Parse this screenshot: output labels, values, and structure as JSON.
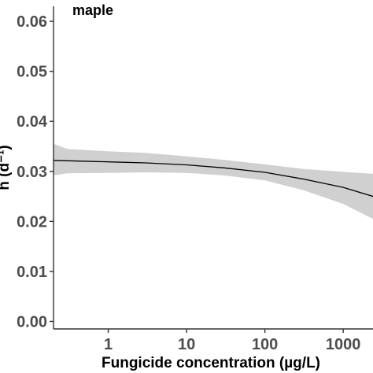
{
  "chart_data": {
    "type": "line",
    "panel_label": "maple",
    "xlabel": "Fungicide concentration (µg/L)",
    "ylabel_fragment": "h (d⁻¹)",
    "x_scale": "log10",
    "xlim": [
      0.2,
      2400
    ],
    "ylim": [
      -0.0015,
      0.063
    ],
    "x_ticks": [
      {
        "value": 1,
        "label": "1"
      },
      {
        "value": 10,
        "label": "10"
      },
      {
        "value": 100,
        "label": "100"
      },
      {
        "value": 1000,
        "label": "1000"
      }
    ],
    "y_ticks": [
      {
        "value": 0.0,
        "label": "0.00"
      },
      {
        "value": 0.01,
        "label": "0.01"
      },
      {
        "value": 0.02,
        "label": "0.02"
      },
      {
        "value": 0.03,
        "label": "0.03"
      },
      {
        "value": 0.04,
        "label": "0.04"
      },
      {
        "value": 0.05,
        "label": "0.05"
      },
      {
        "value": 0.06,
        "label": "0.06"
      }
    ],
    "fit_line": {
      "x": [
        0.2,
        1,
        3,
        10,
        30,
        100,
        300,
        1000,
        2400
      ],
      "y": [
        0.0322,
        0.0319,
        0.0317,
        0.0313,
        0.0307,
        0.0298,
        0.0285,
        0.0268,
        0.025
      ]
    },
    "confidence_band": {
      "x": [
        0.2,
        0.3,
        1,
        3,
        10,
        30,
        100,
        300,
        1000,
        2400
      ],
      "lower": [
        0.0292,
        0.0296,
        0.0297,
        0.0298,
        0.0297,
        0.0292,
        0.0282,
        0.0263,
        0.0235,
        0.0205
      ],
      "upper": [
        0.0355,
        0.0345,
        0.034,
        0.0337,
        0.033,
        0.0323,
        0.0314,
        0.0305,
        0.0299,
        0.0295
      ]
    },
    "grid": false,
    "colors": {
      "line": "#000000",
      "band": "#d0d0d0",
      "axis": "#333333",
      "tick_label": "#4d4d4d"
    }
  }
}
